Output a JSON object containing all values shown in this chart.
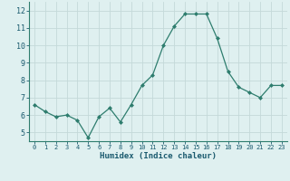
{
  "x": [
    0,
    1,
    2,
    3,
    4,
    5,
    6,
    7,
    8,
    9,
    10,
    11,
    12,
    13,
    14,
    15,
    16,
    17,
    18,
    19,
    20,
    21,
    22,
    23
  ],
  "y": [
    6.6,
    6.2,
    5.9,
    6.0,
    5.7,
    4.7,
    5.9,
    6.4,
    5.6,
    6.6,
    7.7,
    8.3,
    10.0,
    11.1,
    11.8,
    11.8,
    11.8,
    10.4,
    8.5,
    7.6,
    7.3,
    7.0,
    7.7,
    7.7
  ],
  "xlabel": "Humidex (Indice chaleur)",
  "ylim": [
    4.5,
    12.5
  ],
  "xlim": [
    -0.5,
    23.5
  ],
  "yticks": [
    5,
    6,
    7,
    8,
    9,
    10,
    11,
    12
  ],
  "xticks": [
    0,
    1,
    2,
    3,
    4,
    5,
    6,
    7,
    8,
    9,
    10,
    11,
    12,
    13,
    14,
    15,
    16,
    17,
    18,
    19,
    20,
    21,
    22,
    23
  ],
  "line_color": "#2e7d6e",
  "marker": "D",
  "marker_size": 2,
  "bg_color": "#dff0f0",
  "grid_color": "#c4d9d9",
  "axis_label_color": "#1a5a6e",
  "tick_label_color": "#1a5a6e",
  "xlabel_fontsize": 6.5,
  "ytick_fontsize": 6.0,
  "xtick_fontsize": 5.0
}
